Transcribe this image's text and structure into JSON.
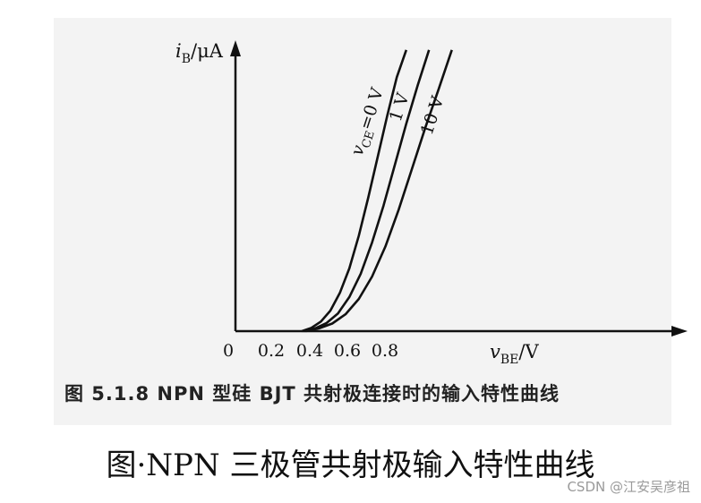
{
  "chart_data": {
    "type": "line",
    "x_axis": {
      "label_var": "v",
      "label_sub": "BE",
      "label_unit": "/V",
      "ticks": [
        "0",
        "0.2",
        "0.4",
        "0.6",
        "0.8"
      ],
      "tick_values": [
        0,
        0.2,
        0.4,
        0.6,
        0.8
      ],
      "xlim": [
        0,
        1.3
      ]
    },
    "y_axis": {
      "label_var": "i",
      "label_sub": "B",
      "label_unit": "/μA",
      "ylim": [
        0,
        10
      ],
      "ticks": []
    },
    "series": [
      {
        "name": "0 V",
        "label_var": "v",
        "label_sub": "CE",
        "label_rest": "=0 V",
        "x": [
          0.35,
          0.4,
          0.45,
          0.5,
          0.55,
          0.6,
          0.65,
          0.7,
          0.75,
          0.8,
          0.85,
          0.9
        ],
        "y": [
          0.0,
          0.12,
          0.35,
          0.75,
          1.4,
          2.3,
          3.5,
          4.9,
          6.4,
          7.9,
          9.3,
          10.3
        ]
      },
      {
        "name": "1 V",
        "label_rest": "1 V",
        "x": [
          0.36,
          0.42,
          0.48,
          0.54,
          0.6,
          0.66,
          0.72,
          0.78,
          0.84,
          0.9,
          0.96,
          1.02
        ],
        "y": [
          0.0,
          0.1,
          0.3,
          0.65,
          1.25,
          2.1,
          3.25,
          4.6,
          6.1,
          7.6,
          9.0,
          10.3
        ]
      },
      {
        "name": "10 V",
        "label_rest": "10 V",
        "x": [
          0.37,
          0.44,
          0.51,
          0.58,
          0.65,
          0.72,
          0.79,
          0.86,
          0.93,
          1.0,
          1.07,
          1.14
        ],
        "y": [
          0.0,
          0.1,
          0.28,
          0.62,
          1.18,
          2.0,
          3.1,
          4.45,
          5.95,
          7.45,
          8.85,
          10.3
        ]
      }
    ],
    "grid": false,
    "legend": "inline labels near curve tops"
  },
  "captions": {
    "figure": "图 5.1.8   NPN 型硅 BJT 共射极连接时的输入特性曲线",
    "main": "图·NPN 三极管共射极输入特性曲线"
  },
  "watermark": "CSDN @江安吴彦祖",
  "colors": {
    "line": "#111111",
    "panel_bg": "#f3f3f3",
    "watermark": "#9a9a9a"
  }
}
